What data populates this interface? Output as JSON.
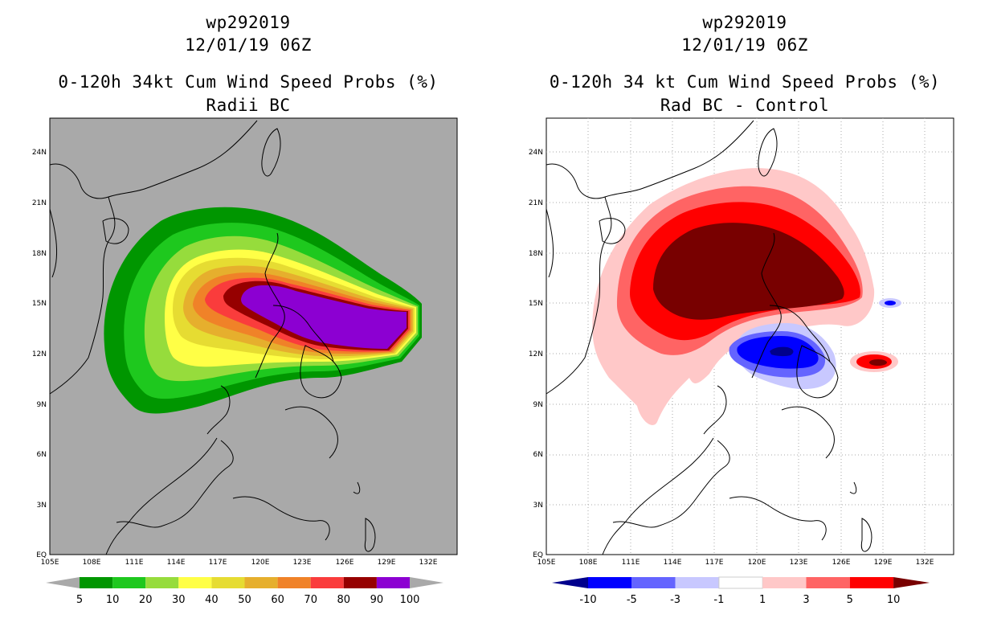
{
  "left": {
    "title_line1": "wp292019",
    "title_line2": "12/01/19 06Z",
    "title_line3": "0-120h 34kt Cum Wind Speed Probs (%)",
    "title_line4": "Radii BC",
    "background_color": "#a9a9a9",
    "colorbar": {
      "labels": [
        "5",
        "10",
        "20",
        "30",
        "40",
        "50",
        "60",
        "70",
        "80",
        "90",
        "100"
      ],
      "colors": [
        "#009600",
        "#1ec81e",
        "#96dc3c",
        "#ffff46",
        "#e6dc32",
        "#e6af2d",
        "#f08228",
        "#fa3c3c",
        "#960000",
        "#8c00d2"
      ]
    }
  },
  "right": {
    "title_line1": "wp292019",
    "title_line2": "12/01/19 06Z",
    "title_line3": "0-120h 34 kt Cum Wind Speed Probs (%)",
    "title_line4": "Rad BC - Control",
    "background_color": "#ffffff",
    "colorbar": {
      "labels": [
        "-10",
        "-5",
        "-3",
        "-1",
        "1",
        "3",
        "5",
        "10"
      ],
      "colors": [
        "#00008c",
        "#0000ff",
        "#6464ff",
        "#c8c8ff",
        "#ffffff",
        "#ffc8c8",
        "#ff6464",
        "#ff0000",
        "#780000"
      ]
    }
  },
  "axes": {
    "lon_labels": [
      "105E",
      "108E",
      "111E",
      "114E",
      "117E",
      "120E",
      "123E",
      "126E",
      "129E",
      "132E"
    ],
    "lat_labels": [
      "EQ",
      "3N",
      "6N",
      "9N",
      "12N",
      "15N",
      "18N",
      "21N",
      "24N"
    ]
  }
}
